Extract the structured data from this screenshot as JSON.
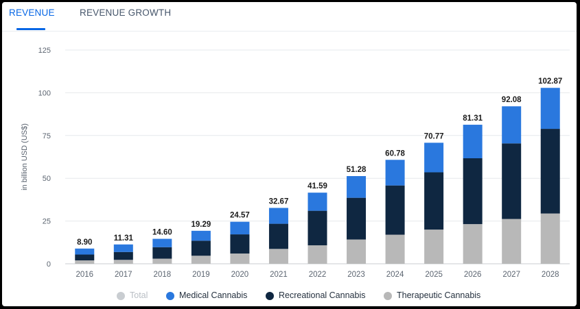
{
  "tabs": [
    {
      "label": "REVENUE",
      "active": true
    },
    {
      "label": "REVENUE GROWTH",
      "active": false
    }
  ],
  "colors": {
    "accent": "#0666e5",
    "medical": "#2a78de",
    "recreational": "#0f2741",
    "therapeutic": "#b8b8b8",
    "total_disabled": "#c9cdd1"
  },
  "chart_data": {
    "type": "bar",
    "stacked": true,
    "categories": [
      "2016",
      "2017",
      "2018",
      "2019",
      "2020",
      "2021",
      "2022",
      "2023",
      "2024",
      "2025",
      "2026",
      "2027",
      "2028"
    ],
    "series": [
      {
        "name": "Therapeutic Cannabis",
        "values": [
          2.0,
          2.3,
          3.0,
          4.7,
          6.0,
          8.7,
          10.8,
          14.2,
          17.0,
          20.0,
          23.2,
          26.2,
          29.4
        ]
      },
      {
        "name": "Recreational Cannabis",
        "values": [
          3.4,
          4.6,
          6.7,
          8.8,
          11.2,
          14.7,
          20.2,
          24.4,
          28.8,
          33.5,
          38.5,
          44.2,
          49.5
        ]
      },
      {
        "name": "Medical Cannabis",
        "values": [
          3.5,
          4.41,
          4.9,
          5.79,
          7.37,
          9.27,
          10.59,
          12.68,
          14.98,
          17.27,
          19.61,
          21.68,
          23.97
        ]
      }
    ],
    "totals": [
      "8.90",
      "11.31",
      "14.60",
      "19.29",
      "24.57",
      "32.67",
      "41.59",
      "51.28",
      "60.78",
      "70.77",
      "81.31",
      "92.08",
      "102.87"
    ],
    "ylabel": "in billion USD (US$)",
    "ylim": [
      0,
      125
    ],
    "yticks": [
      "0",
      "25",
      "50",
      "75",
      "100",
      "125"
    ],
    "grid": true
  },
  "legend": [
    {
      "label": "Total",
      "disabled": true
    },
    {
      "label": "Medical Cannabis",
      "disabled": false
    },
    {
      "label": "Recreational Cannabis",
      "disabled": false
    },
    {
      "label": "Therapeutic Cannabis",
      "disabled": false
    }
  ]
}
